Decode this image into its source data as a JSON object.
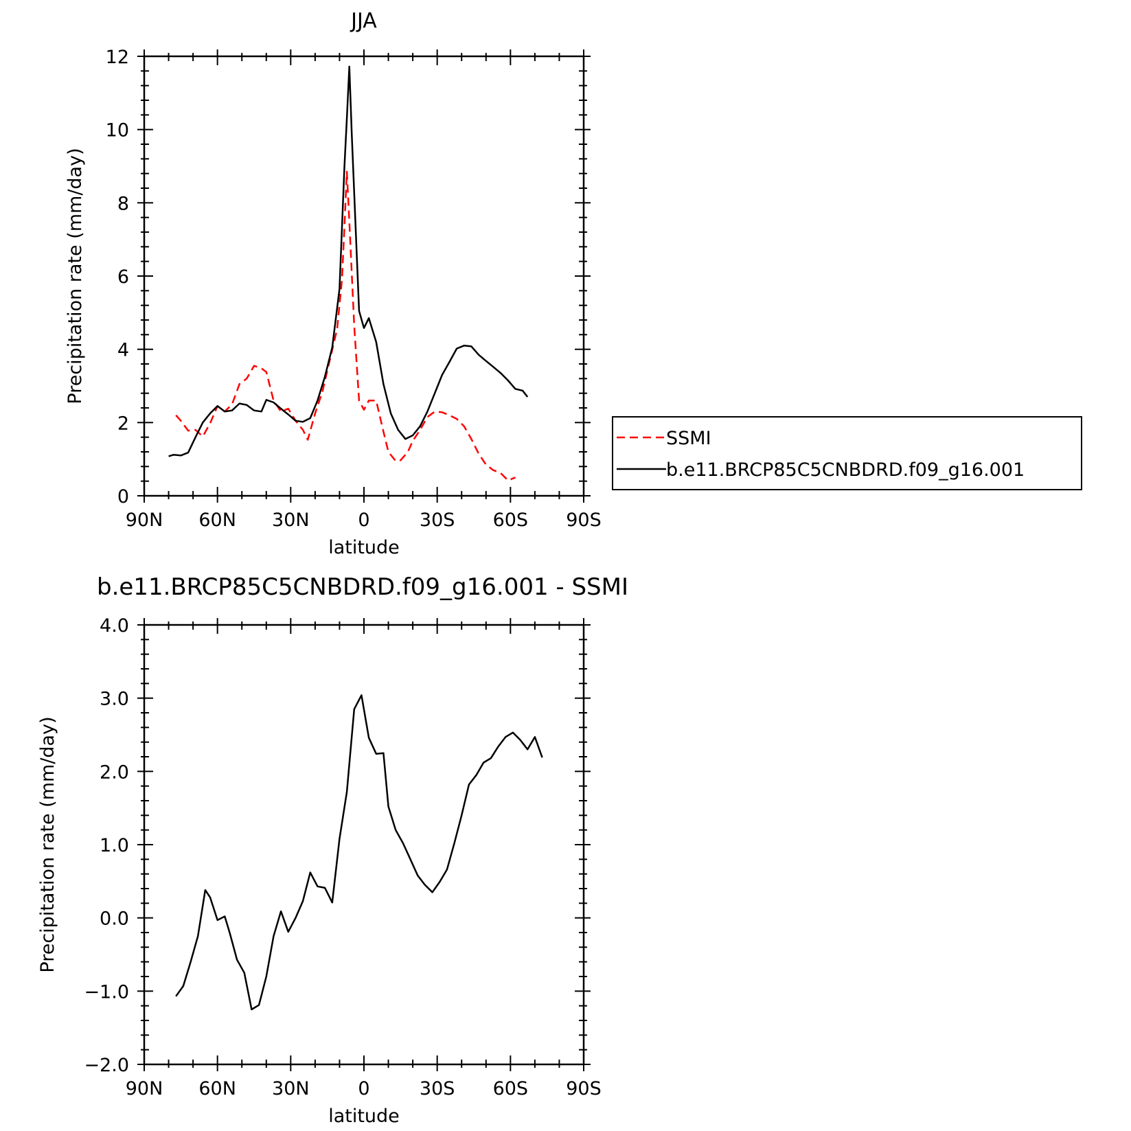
{
  "chart_data": [
    {
      "type": "line",
      "title": "JJA",
      "xlabel": "latitude",
      "ylabel": "Precipitation rate (mm/day)",
      "xlim": [
        90,
        -90
      ],
      "ylim": [
        0,
        12
      ],
      "x_ticks": [
        90,
        60,
        30,
        0,
        -30,
        -60,
        -90
      ],
      "x_tick_labels": [
        "90N",
        "60N",
        "30N",
        "0",
        "30S",
        "60S",
        "90S"
      ],
      "y_ticks": [
        0,
        2,
        4,
        6,
        8,
        10,
        12
      ],
      "y_tick_labels": [
        "0",
        "2",
        "4",
        "6",
        "8",
        "10",
        "12"
      ],
      "legend": {
        "placement": "right",
        "entries": [
          "SSMI",
          "b.e11.BRCP85C5CNBDRD.f09_g16.001"
        ]
      },
      "series": [
        {
          "name": "SSMI",
          "color": "#ff0000",
          "dash": "dashed",
          "points": [
            [
              77,
              2.2
            ],
            [
              75,
              2.05
            ],
            [
              72,
              1.78
            ],
            [
              69,
              1.8
            ],
            [
              66,
              1.62
            ],
            [
              63,
              1.98
            ],
            [
              60,
              2.45
            ],
            [
              57,
              2.3
            ],
            [
              54,
              2.5
            ],
            [
              51,
              3.05
            ],
            [
              48,
              3.2
            ],
            [
              45,
              3.55
            ],
            [
              42,
              3.48
            ],
            [
              40,
              3.38
            ],
            [
              37,
              2.6
            ],
            [
              34,
              2.3
            ],
            [
              31,
              2.38
            ],
            [
              28,
              2.05
            ],
            [
              25,
              1.8
            ],
            [
              23,
              1.53
            ],
            [
              20,
              2.25
            ],
            [
              17,
              2.85
            ],
            [
              14,
              3.7
            ],
            [
              11,
              4.55
            ],
            [
              9,
              5.9
            ],
            [
              8,
              7.35
            ],
            [
              7,
              8.85
            ],
            [
              6,
              7.5
            ],
            [
              4,
              4.65
            ],
            [
              2,
              2.6
            ],
            [
              0,
              2.35
            ],
            [
              -2,
              2.6
            ],
            [
              -5,
              2.6
            ],
            [
              -8,
              1.75
            ],
            [
              -10,
              1.2
            ],
            [
              -13,
              0.95
            ],
            [
              -15,
              0.97
            ],
            [
              -18,
              1.2
            ],
            [
              -20,
              1.5
            ],
            [
              -23,
              1.8
            ],
            [
              -26,
              2.15
            ],
            [
              -29,
              2.3
            ],
            [
              -32,
              2.28
            ],
            [
              -35,
              2.2
            ],
            [
              -38,
              2.1
            ],
            [
              -41,
              1.9
            ],
            [
              -44,
              1.55
            ],
            [
              -47,
              1.15
            ],
            [
              -50,
              0.85
            ],
            [
              -53,
              0.7
            ],
            [
              -56,
              0.62
            ],
            [
              -59,
              0.42
            ],
            [
              -62,
              0.5
            ]
          ]
        },
        {
          "name": "b.e11.BRCP85C5CNBDRD.f09_g16.001",
          "color": "#000000",
          "dash": "solid",
          "points": [
            [
              80,
              1.08
            ],
            [
              78,
              1.12
            ],
            [
              75,
              1.1
            ],
            [
              72,
              1.18
            ],
            [
              69,
              1.6
            ],
            [
              66,
              2.0
            ],
            [
              63,
              2.25
            ],
            [
              60,
              2.45
            ],
            [
              57,
              2.3
            ],
            [
              54,
              2.33
            ],
            [
              51,
              2.52
            ],
            [
              48,
              2.48
            ],
            [
              45,
              2.33
            ],
            [
              42,
              2.3
            ],
            [
              40,
              2.62
            ],
            [
              37,
              2.55
            ],
            [
              34,
              2.38
            ],
            [
              31,
              2.22
            ],
            [
              28,
              2.05
            ],
            [
              25,
              2.02
            ],
            [
              22,
              2.12
            ],
            [
              19,
              2.6
            ],
            [
              16,
              3.25
            ],
            [
              13,
              4.05
            ],
            [
              10,
              5.65
            ],
            [
              8,
              9.0
            ],
            [
              7,
              10.3
            ],
            [
              6,
              11.72
            ],
            [
              5,
              9.9
            ],
            [
              2,
              5.05
            ],
            [
              0,
              4.58
            ],
            [
              -2,
              4.85
            ],
            [
              -5,
              4.2
            ],
            [
              -8,
              3.05
            ],
            [
              -11,
              2.25
            ],
            [
              -14,
              1.8
            ],
            [
              -17,
              1.55
            ],
            [
              -20,
              1.65
            ],
            [
              -23,
              1.9
            ],
            [
              -26,
              2.3
            ],
            [
              -29,
              2.8
            ],
            [
              -32,
              3.3
            ],
            [
              -35,
              3.65
            ],
            [
              -38,
              4.02
            ],
            [
              -41,
              4.1
            ],
            [
              -44,
              4.08
            ],
            [
              -47,
              3.85
            ],
            [
              -50,
              3.68
            ],
            [
              -53,
              3.52
            ],
            [
              -56,
              3.35
            ],
            [
              -59,
              3.15
            ],
            [
              -62,
              2.92
            ],
            [
              -65,
              2.87
            ],
            [
              -67,
              2.7
            ]
          ]
        }
      ]
    },
    {
      "type": "line",
      "title": "b.e11.BRCP85C5CNBDRD.f09_g16.001 - SSMI",
      "xlabel": "latitude",
      "ylabel": "Precipitation rate (mm/day)",
      "xlim": [
        90,
        -90
      ],
      "ylim": [
        -2.0,
        4.0
      ],
      "x_ticks": [
        90,
        60,
        30,
        0,
        -30,
        -60,
        -90
      ],
      "x_tick_labels": [
        "90N",
        "60N",
        "30N",
        "0",
        "30S",
        "60S",
        "90S"
      ],
      "y_ticks": [
        -2.0,
        -1.0,
        0.0,
        1.0,
        2.0,
        3.0,
        4.0
      ],
      "y_tick_labels": [
        "−2.0",
        "−1.0",
        "0.0",
        "1.0",
        "2.0",
        "3.0",
        "4.0"
      ],
      "series": [
        {
          "color": "#000000",
          "dash": "solid",
          "points": [
            [
              77,
              -1.07
            ],
            [
              74,
              -0.93
            ],
            [
              71,
              -0.6
            ],
            [
              68,
              -0.25
            ],
            [
              65,
              0.38
            ],
            [
              63,
              0.28
            ],
            [
              60,
              -0.03
            ],
            [
              57,
              0.02
            ],
            [
              55,
              -0.2
            ],
            [
              52,
              -0.57
            ],
            [
              49,
              -0.75
            ],
            [
              46,
              -1.25
            ],
            [
              43,
              -1.19
            ],
            [
              40,
              -0.8
            ],
            [
              37,
              -0.25
            ],
            [
              34,
              0.09
            ],
            [
              31,
              -0.19
            ],
            [
              28,
              0.0
            ],
            [
              25,
              0.23
            ],
            [
              22,
              0.62
            ],
            [
              19,
              0.43
            ],
            [
              16,
              0.41
            ],
            [
              13,
              0.21
            ],
            [
              10,
              1.08
            ],
            [
              7,
              1.72
            ],
            [
              4,
              2.85
            ],
            [
              1,
              3.04
            ],
            [
              -2,
              2.46
            ],
            [
              -5,
              2.24
            ],
            [
              -8,
              2.25
            ],
            [
              -10,
              1.52
            ],
            [
              -13,
              1.2
            ],
            [
              -16,
              1.02
            ],
            [
              -19,
              0.8
            ],
            [
              -22,
              0.58
            ],
            [
              -25,
              0.45
            ],
            [
              -28,
              0.35
            ],
            [
              -31,
              0.49
            ],
            [
              -34,
              0.66
            ],
            [
              -37,
              1.02
            ],
            [
              -40,
              1.4
            ],
            [
              -43,
              1.82
            ],
            [
              -46,
              1.95
            ],
            [
              -49,
              2.12
            ],
            [
              -52,
              2.18
            ],
            [
              -55,
              2.34
            ],
            [
              -58,
              2.47
            ],
            [
              -61,
              2.53
            ],
            [
              -64,
              2.43
            ],
            [
              -67,
              2.3
            ],
            [
              -70,
              2.47
            ],
            [
              -73,
              2.19
            ]
          ]
        }
      ]
    }
  ]
}
